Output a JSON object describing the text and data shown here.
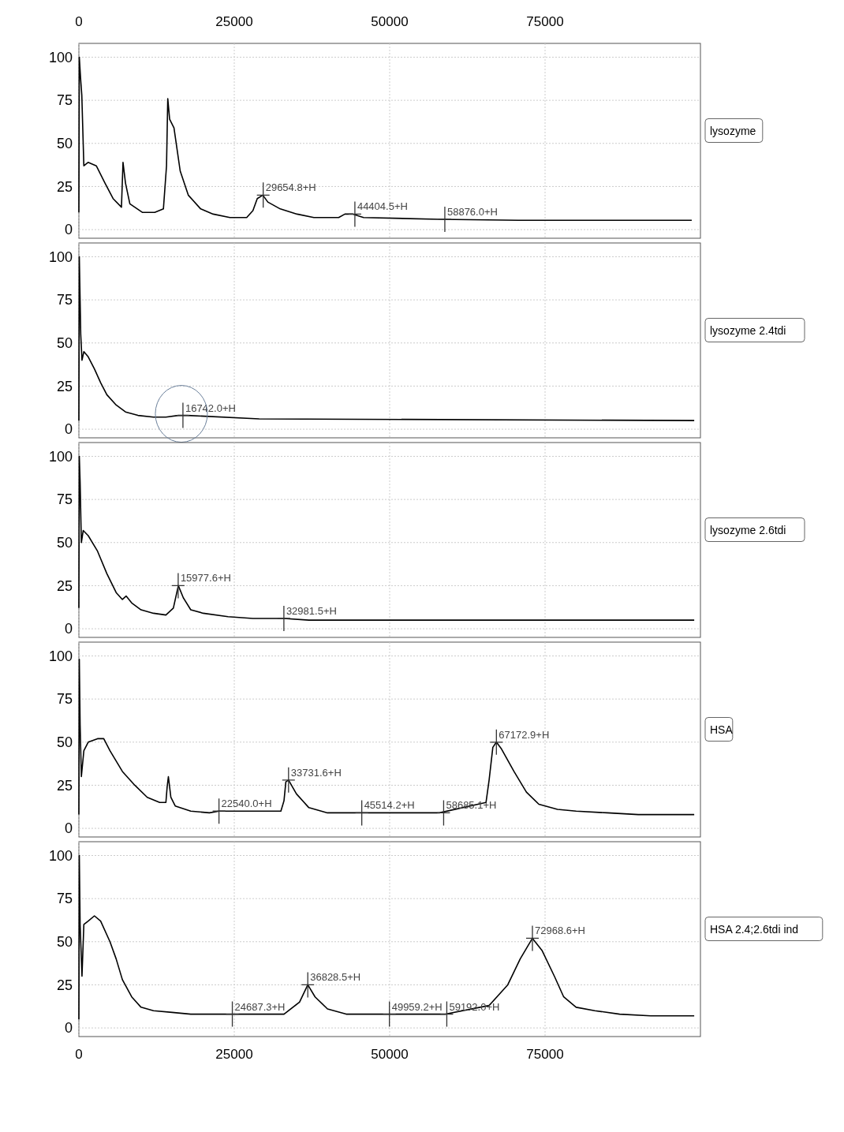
{
  "chart_data": [
    {
      "type": "line",
      "x": [
        0,
        70,
        270,
        470,
        800,
        1480,
        2800,
        4200,
        5500,
        6850,
        7100,
        7500,
        8200,
        10200,
        12200,
        13600,
        14100,
        14300,
        14600,
        15300,
        16300,
        17600,
        19600,
        21600,
        24300,
        27000,
        28000,
        28700,
        29600,
        30400,
        32400,
        35100,
        37800,
        41800,
        42800,
        44100,
        45800,
        57900,
        70700,
        98600
      ],
      "series": [
        {
          "name": "lysozyme",
          "color": "#000000",
          "values": [
            10,
            100,
            88,
            78,
            37,
            39,
            37,
            27,
            18,
            13,
            39,
            27,
            15,
            10,
            10,
            12,
            37,
            76,
            64,
            59,
            34,
            20,
            12,
            9,
            7,
            7,
            11,
            18,
            20,
            16,
            12,
            9,
            7,
            7,
            9,
            9,
            7,
            6,
            5.4,
            5.4
          ]
        }
      ],
      "xlim": [
        0,
        100000
      ],
      "xticks": [
        0,
        25000,
        50000,
        75000
      ],
      "x2lim": [
        0,
        100000
      ],
      "x2ticks": [
        0,
        25000,
        50000,
        75000
      ],
      "ylim": [
        -5,
        108
      ],
      "yticks": [
        0,
        25,
        50,
        75,
        100
      ],
      "grid": true,
      "legend": "right",
      "tick_labels": "y",
      "annotations": [
        {
          "text": "29654.8+H",
          "x": 29654.8,
          "y": 20
        },
        {
          "text": "44404.5+H",
          "x": 44404.5,
          "y": 9
        },
        {
          "text": "58876.0+H",
          "x": 58876,
          "y": 6
        }
      ]
    },
    {
      "type": "line",
      "x": [
        0,
        70,
        300,
        500,
        800,
        1500,
        2500,
        3500,
        4500,
        6000,
        7500,
        9500,
        12000,
        14000,
        16000,
        16742,
        17500,
        29000,
        99000
      ],
      "series": [
        {
          "name": "lysozyme 2.4tdi",
          "color": "#000000",
          "values": [
            5,
            100,
            55,
            40,
            45,
            42,
            35,
            27,
            20,
            14,
            10,
            8,
            7,
            7,
            8,
            8,
            8,
            6,
            5
          ]
        }
      ],
      "xlim": [
        0,
        100000
      ],
      "xticks": [
        0,
        25000,
        50000,
        75000
      ],
      "ylim": [
        -5,
        108
      ],
      "yticks": [
        0,
        25,
        50,
        75,
        100
      ],
      "grid": true,
      "legend": "right",
      "tick_labels": "y",
      "annotations": [
        {
          "text": "16742.0+H",
          "x": 16742,
          "y": 8
        }
      ]
    },
    {
      "type": "line",
      "x": [
        0,
        70,
        200,
        400,
        700,
        1500,
        3000,
        4500,
        6000,
        7000,
        7600,
        8500,
        10000,
        12000,
        14000,
        15200,
        16000,
        16800,
        18000,
        20000,
        24000,
        28000,
        33000,
        37000,
        99000
      ],
      "series": [
        {
          "name": "lysozyme 2.6tdi",
          "color": "#000000",
          "values": [
            12,
            100,
            85,
            50,
            57,
            54,
            45,
            32,
            21,
            17,
            19,
            15,
            11,
            9,
            8,
            12,
            25,
            18,
            11,
            9,
            7,
            6,
            6,
            5,
            5
          ]
        }
      ],
      "xlim": [
        0,
        100000
      ],
      "xticks": [
        0,
        25000,
        50000,
        75000
      ],
      "ylim": [
        -5,
        108
      ],
      "yticks": [
        0,
        25,
        50,
        75,
        100
      ],
      "grid": true,
      "legend": "right",
      "tick_labels": "y",
      "annotations": [
        {
          "text": "15977.6+H",
          "x": 15977.6,
          "y": 25
        },
        {
          "text": "32981.5+H",
          "x": 32981.5,
          "y": 6
        }
      ]
    },
    {
      "type": "line",
      "x": [
        0,
        70,
        200,
        400,
        800,
        1500,
        3000,
        4000,
        5000,
        7000,
        9000,
        11000,
        13000,
        14000,
        14200,
        14400,
        14800,
        15500,
        18000,
        21000,
        22540,
        24000,
        26000,
        32500,
        33000,
        33300,
        33731,
        35000,
        37000,
        40000,
        45514,
        48000,
        58000,
        65500,
        66000,
        66600,
        67173,
        68000,
        70000,
        72000,
        74000,
        77000,
        80000,
        85000,
        90000,
        99000
      ],
      "series": [
        {
          "name": "HSA",
          "color": "#000000",
          "values": [
            8,
            98,
            60,
            30,
            45,
            50,
            52,
            52,
            45,
            33,
            25,
            18,
            15,
            15,
            24,
            30,
            18,
            13,
            10,
            9,
            10,
            10,
            10,
            10,
            16,
            27,
            28,
            20,
            12,
            9,
            9,
            9,
            9,
            15,
            28,
            47,
            50,
            46,
            33,
            21,
            14,
            11,
            10,
            9,
            8,
            8
          ]
        }
      ],
      "xlim": [
        0,
        100000
      ],
      "xticks": [
        0,
        25000,
        50000,
        75000
      ],
      "ylim": [
        -5,
        108
      ],
      "yticks": [
        0,
        25,
        50,
        75,
        100
      ],
      "grid": true,
      "legend": "right",
      "tick_labels": "y",
      "annotations": [
        {
          "text": "22540.0+H",
          "x": 22540,
          "y": 10
        },
        {
          "text": "33731.6+H",
          "x": 33731.6,
          "y": 28
        },
        {
          "text": "45514.2+H",
          "x": 45514.2,
          "y": 9
        },
        {
          "text": "58685.1+H",
          "x": 58685.1,
          "y": 9
        },
        {
          "text": "67172.9+H",
          "x": 67172.9,
          "y": 50
        }
      ]
    },
    {
      "type": "line",
      "x": [
        0,
        70,
        200,
        500,
        800,
        1500,
        2500,
        3500,
        5000,
        6000,
        7000,
        8500,
        10000,
        12000,
        15000,
        18000,
        22000,
        24687,
        28000,
        33000,
        35500,
        36828,
        38000,
        40000,
        43000,
        49959,
        53000,
        59000,
        66000,
        69000,
        71000,
        72968,
        74500,
        76500,
        78000,
        80000,
        83000,
        87000,
        92000,
        99000
      ],
      "series": [
        {
          "name": "HSA 2.4;2.6tdi ind",
          "color": "#000000",
          "values": [
            5,
            100,
            60,
            30,
            60,
            62,
            65,
            62,
            50,
            40,
            28,
            18,
            12,
            10,
            9,
            8,
            8,
            8,
            8,
            8,
            15,
            25,
            18,
            11,
            8,
            8,
            8,
            8,
            13,
            25,
            40,
            52,
            45,
            30,
            18,
            12,
            10,
            8,
            7,
            7
          ]
        }
      ],
      "xlim": [
        0,
        100000
      ],
      "xticks": [
        0,
        25000,
        50000,
        75000
      ],
      "ylim": [
        -5,
        108
      ],
      "yticks": [
        0,
        25,
        50,
        75,
        100
      ],
      "grid": true,
      "legend": "right",
      "annotations": [
        {
          "text": "24687.3+H",
          "x": 24687.3,
          "y": 8
        },
        {
          "text": "36828.5+H",
          "x": 36828.5,
          "y": 25
        },
        {
          "text": "49959.2+H",
          "x": 49959.2,
          "y": 8
        },
        {
          "text": "59192.0+H",
          "x": 59192,
          "y": 8
        },
        {
          "text": "72968.6+H",
          "x": 72968.6,
          "y": 52
        }
      ]
    }
  ]
}
